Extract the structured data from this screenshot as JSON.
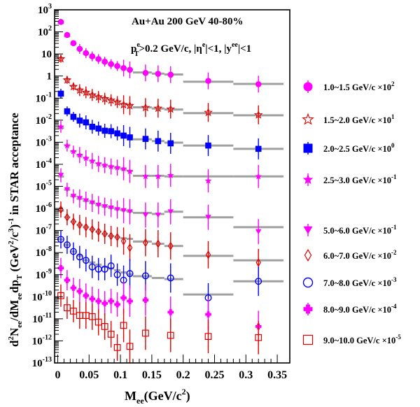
{
  "chart_data": {
    "type": "scatter",
    "title": "Au+Au 200 GeV 40-80%",
    "cut_label": {
      "pre": "p",
      "sup": "e",
      "sub": "T",
      "post": ">0.2 GeV/c, |η",
      "sup2": "e",
      "post2": "|<1, |y",
      "sup3": "ee",
      "post3": "|<1"
    },
    "xlabel": {
      "pre": "M",
      "sub": "ee",
      "post": "(GeV/c",
      "sup": "2",
      "post2": ")"
    },
    "ylabel": "d²N_ee/dM_ee dp_T (GeV²/c³)⁻¹ in STAR acceptance",
    "ylabel_parts": {
      "a": "d",
      "b": "2",
      "c": "N",
      "d": "ee",
      "e": "/dM",
      "f": "ee",
      "g": "dp",
      "h": "T",
      "i": " (GeV",
      "j": "2",
      "k": "/c",
      "l": "3",
      "m": ")",
      "n": "-1",
      "o": " in STAR acceptance"
    },
    "xlim": [
      -0.005,
      0.37
    ],
    "ylim_log10": [
      -13,
      3
    ],
    "log_y": true,
    "grid": false,
    "legend_position": "right",
    "x_ticks": [
      {
        "v": 0,
        "label": "0"
      },
      {
        "v": 0.05,
        "label": "0.05"
      },
      {
        "v": 0.1,
        "label": "0.1"
      },
      {
        "v": 0.15,
        "label": "0.15"
      },
      {
        "v": 0.2,
        "label": "0.2"
      },
      {
        "v": 0.25,
        "label": "0.25"
      },
      {
        "v": 0.3,
        "label": "0.3"
      },
      {
        "v": 0.35,
        "label": "0.35"
      }
    ],
    "y_ticks": [
      {
        "e": 3,
        "label": "10",
        "sup": "3"
      },
      {
        "e": 2,
        "label": "10",
        "sup": "2"
      },
      {
        "e": 1,
        "label": "10",
        "sup": ""
      },
      {
        "e": 0,
        "label": "1",
        "sup": ""
      },
      {
        "e": -1,
        "label": "10",
        "sup": "-1"
      },
      {
        "e": -2,
        "label": "10",
        "sup": "-2"
      },
      {
        "e": -3,
        "label": "10",
        "sup": "-3"
      },
      {
        "e": -4,
        "label": "10",
        "sup": "-4"
      },
      {
        "e": -5,
        "label": "10",
        "sup": "-5"
      },
      {
        "e": -6,
        "label": "10",
        "sup": "-6"
      },
      {
        "e": -7,
        "label": "10",
        "sup": "-7"
      },
      {
        "e": -8,
        "label": "10",
        "sup": "-8"
      },
      {
        "e": -9,
        "label": "10",
        "sup": "-9"
      },
      {
        "e": -10,
        "label": "10",
        "sup": "-10"
      },
      {
        "e": -11,
        "label": "10",
        "sup": "-11"
      },
      {
        "e": -12,
        "label": "10",
        "sup": "-12"
      },
      {
        "e": -13,
        "label": "10",
        "sup": "-13"
      }
    ],
    "x": [
      0.005,
      0.015,
      0.025,
      0.035,
      0.045,
      0.055,
      0.065,
      0.075,
      0.085,
      0.095,
      0.105,
      0.115,
      0.14,
      0.16,
      0.18,
      0.24,
      0.32
    ],
    "bins": [
      [
        0.0,
        0.01
      ],
      [
        0.01,
        0.02
      ],
      [
        0.02,
        0.03
      ],
      [
        0.03,
        0.04
      ],
      [
        0.04,
        0.05
      ],
      [
        0.05,
        0.06
      ],
      [
        0.06,
        0.07
      ],
      [
        0.07,
        0.08
      ],
      [
        0.08,
        0.09
      ],
      [
        0.09,
        0.1
      ],
      [
        0.1,
        0.11
      ],
      [
        0.11,
        0.12
      ],
      [
        0.12,
        0.15
      ],
      [
        0.15,
        0.17
      ],
      [
        0.17,
        0.2
      ],
      [
        0.2,
        0.28
      ],
      [
        0.28,
        0.36
      ]
    ],
    "series": [
      {
        "name": "1.0~1.5 GeV/c",
        "scale": "×10",
        "scale_sup": "2",
        "marker": "circle",
        "color": "#ff00ff",
        "log_values": [
          2.45,
          1.86,
          1.49,
          1.23,
          1.04,
          0.89,
          0.77,
          0.65,
          0.54,
          0.45,
          0.36,
          0.28,
          0.14,
          0.1,
          0.06,
          -0.22,
          -0.37
        ],
        "log_model": [
          2.4,
          1.8,
          1.45,
          1.2,
          1.0,
          0.86,
          0.74,
          0.62,
          0.52,
          0.43,
          0.35,
          0.28,
          0.16,
          0.11,
          0.07,
          -0.26,
          -0.36
        ]
      },
      {
        "name": "1.5~2.0 GeV/c",
        "scale": "×10",
        "scale_sup": "1",
        "marker": "star-open",
        "color": "#e00000",
        "log_values": [
          0.78,
          -0.18,
          -0.48,
          -0.64,
          -0.74,
          -0.86,
          -0.95,
          -1.03,
          -1.1,
          -1.18,
          -1.3,
          -1.34,
          -1.43,
          -1.46,
          -1.5,
          -1.65,
          -1.76
        ],
        "log_model": [
          0.8,
          -0.15,
          -0.45,
          -0.62,
          -0.73,
          -0.84,
          -0.92,
          -1.0,
          -1.08,
          -1.16,
          -1.26,
          -1.33,
          -1.42,
          -1.47,
          -1.52,
          -1.68,
          -1.78
        ]
      },
      {
        "name": "2.0~2.5 GeV/c",
        "scale": "×10",
        "scale_sup": "0",
        "marker": "square",
        "color": "#0000ff",
        "log_values": [
          -0.8,
          -1.6,
          -1.85,
          -2.02,
          -2.1,
          -2.3,
          -2.38,
          -2.48,
          -2.5,
          -2.6,
          -2.7,
          -2.78,
          -2.85,
          -2.95,
          -3.05,
          -3.15,
          -3.3
        ],
        "log_model": [
          -0.85,
          -1.6,
          -1.85,
          -2.0,
          -2.12,
          -2.27,
          -2.36,
          -2.45,
          -2.52,
          -2.6,
          -2.68,
          -2.76,
          -2.87,
          -2.95,
          -3.02,
          -3.15,
          -3.3
        ]
      },
      {
        "name": "2.5~3.0 GeV/c",
        "scale": "×10",
        "scale_sup": "-1",
        "marker": "star",
        "color": "#ff00ff",
        "log_values": [
          -2.3,
          -3.15,
          -3.42,
          -3.58,
          -3.72,
          -3.85,
          -3.98,
          -4.04,
          -4.1,
          -4.15,
          -4.2,
          -4.32,
          -4.55,
          -4.55,
          -4.5,
          -4.75,
          -4.55
        ],
        "log_model": [
          -2.35,
          -3.15,
          -3.42,
          -3.6,
          -3.72,
          -3.84,
          -3.95,
          -4.04,
          -4.1,
          -4.17,
          -4.23,
          -4.3,
          -4.52,
          -4.52,
          -4.55,
          -4.55,
          -4.55
        ]
      },
      {
        "name": "5.0~6.0 GeV/c",
        "scale": "×10",
        "scale_sup": "-1",
        "marker": "triangle-down",
        "color": "#ff00ff",
        "log_values": [
          -4.5,
          -5.15,
          -5.45,
          -5.55,
          -5.65,
          -5.75,
          -5.85,
          -5.92,
          -5.98,
          -6.05,
          -6.1,
          -6.15,
          -6.3,
          -6.3,
          -6.15,
          -6.4,
          -7.05
        ],
        "log_model": [
          -4.55,
          -5.15,
          -5.45,
          -5.56,
          -5.66,
          -5.76,
          -5.85,
          -5.92,
          -5.98,
          -6.04,
          -6.09,
          -6.14,
          -6.2,
          -6.25,
          -6.15,
          -6.4,
          -6.85
        ]
      },
      {
        "name": "6.0~7.0 GeV/c",
        "scale": "×10",
        "scale_sup": "-2",
        "marker": "diamond-open",
        "color": "#e00000",
        "log_values": [
          -6.05,
          -6.4,
          -6.6,
          -6.75,
          -6.85,
          -6.95,
          -7.05,
          -7.15,
          -7.25,
          -7.3,
          -7.48,
          -7.78,
          -7.55,
          -7.6,
          -7.7,
          -8.1,
          -8.45
        ],
        "log_model": [
          -6.1,
          -6.4,
          -6.6,
          -6.75,
          -6.85,
          -6.95,
          -7.05,
          -7.15,
          -7.25,
          -7.3,
          -7.35,
          -7.38,
          -7.5,
          -7.6,
          -7.7,
          -8.15,
          -8.35
        ]
      },
      {
        "name": "7.0~8.0 GeV/c",
        "scale": "×10",
        "scale_sup": "-3",
        "marker": "circle-open",
        "color": "#0000ff",
        "log_values": [
          -7.4,
          -7.65,
          -7.95,
          -8.2,
          -8.35,
          -8.65,
          -8.75,
          -8.75,
          -8.6,
          -9.0,
          -9.25,
          -8.95,
          -9.05,
          null,
          -9.15,
          -10.05,
          -9.3
        ],
        "log_model": [
          -7.4,
          -7.65,
          -7.95,
          -8.15,
          -8.35,
          -8.45,
          -8.55,
          -8.65,
          -8.72,
          -8.8,
          -8.9,
          -8.98,
          -9.07,
          -9.15,
          -9.2,
          -9.9,
          -9.3
        ]
      },
      {
        "name": "8.0~9.0 GeV/c",
        "scale": "×10",
        "scale_sup": "-4",
        "marker": "plus",
        "color": "#ff00ff",
        "log_values": [
          -8.7,
          -9.25,
          -9.6,
          -9.75,
          -9.95,
          -10.1,
          -10.2,
          -10.3,
          -10.2,
          -10.35,
          -10.05,
          -10.2,
          -10.15,
          null,
          -10.7,
          -10.8,
          -11.35
        ],
        "log_model": null
      },
      {
        "name": "9.0~10.0 GeV/c",
        "scale": "×10",
        "scale_sup": "-5",
        "marker": "square-open",
        "color": "#e00000",
        "log_values": [
          -9.95,
          -10.5,
          -10.65,
          -10.85,
          -10.85,
          -10.9,
          -11.15,
          -11.35,
          -11.7,
          -12.3,
          -11.3,
          -12.25,
          -11.65,
          null,
          -11.75,
          -11.8,
          -11.85
        ],
        "log_model": null
      }
    ]
  }
}
